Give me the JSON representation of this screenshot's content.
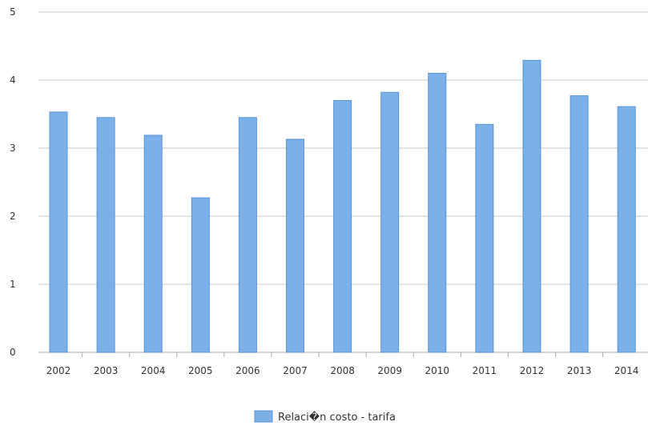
{
  "chart_data": {
    "type": "bar",
    "categories": [
      "2002",
      "2003",
      "2004",
      "2005",
      "2006",
      "2007",
      "2008",
      "2009",
      "2010",
      "2011",
      "2012",
      "2013",
      "2014"
    ],
    "series": [
      {
        "name": "Relaci�n costo - tarifa",
        "values": [
          3.53,
          3.45,
          3.19,
          2.27,
          3.45,
          3.13,
          3.7,
          3.82,
          4.1,
          3.35,
          4.29,
          3.77,
          3.61
        ]
      }
    ],
    "yticks": [
      0,
      1,
      2,
      3,
      4,
      5
    ],
    "ylim": [
      0,
      5
    ],
    "grid": true,
    "legend_position": "bottom-center",
    "colors": {
      "bar_fill": "#7cb0e8",
      "bar_stroke": "#5b93d3",
      "grid": "#c8c8c8",
      "axis": "#aaaaaa"
    }
  }
}
